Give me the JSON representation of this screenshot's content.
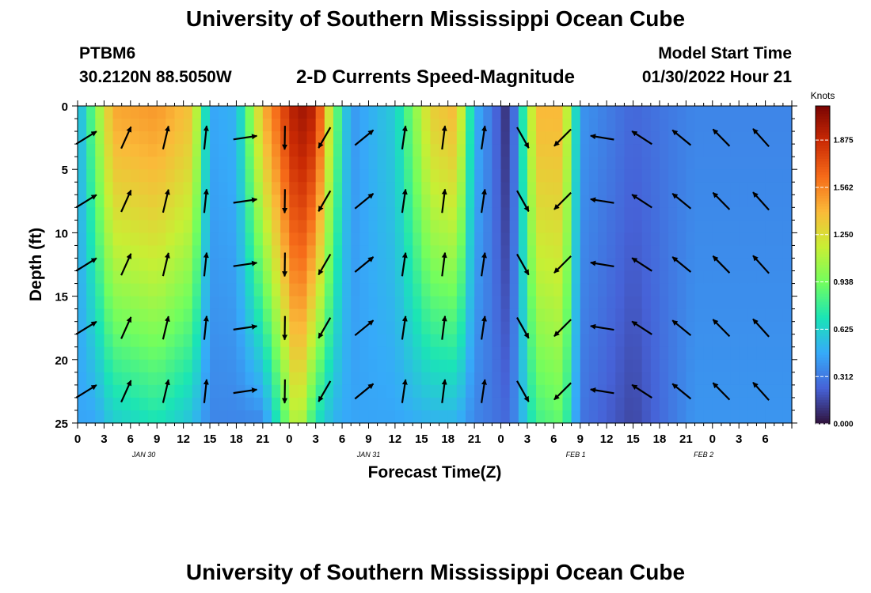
{
  "header": {
    "title": "University of Southern Mississippi Ocean Cube",
    "station": "PTBM6",
    "coordinates": "30.2120N  88.5050W",
    "subtitle": "2-D Currents Speed-Magnitude",
    "model_start_label": "Model Start Time",
    "model_start_time": "01/30/2022 Hour 21"
  },
  "footer": {
    "title": "University of Southern Mississippi Ocean Cube"
  },
  "colors": {
    "ramp": [
      "#30123b",
      "#4662d7",
      "#36aaf9",
      "#1ae4b6",
      "#72fe5e",
      "#c8ef34",
      "#faba39",
      "#f66b19",
      "#ca2a04",
      "#7a0403"
    ],
    "arrow": "#000000",
    "axis": "#000000"
  },
  "chart_data": {
    "type": "heatmap",
    "title": "2-D Currents Speed-Magnitude",
    "xlabel": "Forecast Time(Z)",
    "ylabel": "Depth (ft)",
    "x_range_hours": [
      0,
      81
    ],
    "y_range_ft": [
      0,
      25
    ],
    "y_ticks": [
      0,
      5,
      10,
      15,
      20,
      25
    ],
    "x_tick_labels": [
      "0",
      "3",
      "6",
      "9",
      "12",
      "15",
      "18",
      "21",
      "0",
      "3",
      "6",
      "9",
      "12",
      "15",
      "18",
      "21",
      "0",
      "3",
      "6",
      "9",
      "12",
      "15",
      "18",
      "21",
      "0",
      "3",
      "6"
    ],
    "date_labels": [
      {
        "text": "JAN 30",
        "hour": 7.5
      },
      {
        "text": "JAN 31",
        "hour": 33
      },
      {
        "text": "FEB 1",
        "hour": 56.5
      },
      {
        "text": "FEB 2",
        "hour": 71
      }
    ],
    "colorbar": {
      "label": "Knots",
      "min": 0,
      "max": 2.1,
      "ticks": [
        "0.000",
        "0.312",
        "0.625",
        "0.938",
        "1.250",
        "1.562",
        "1.875"
      ]
    },
    "speed_knots_by_hour": [
      {
        "hour": 0,
        "surface": 0.45,
        "bottom": 0.45
      },
      {
        "hour": 2,
        "surface": 0.95,
        "bottom": 0.45
      },
      {
        "hour": 4,
        "surface": 1.45,
        "bottom": 0.6
      },
      {
        "hour": 9,
        "surface": 1.5,
        "bottom": 0.7
      },
      {
        "hour": 13,
        "surface": 1.35,
        "bottom": 0.55
      },
      {
        "hour": 15,
        "surface": 0.45,
        "bottom": 0.35
      },
      {
        "hour": 18,
        "surface": 0.5,
        "bottom": 0.35
      },
      {
        "hour": 21,
        "surface": 1.4,
        "bottom": 0.35
      },
      {
        "hour": 25,
        "surface": 2.0,
        "bottom": 1.2
      },
      {
        "hour": 27,
        "surface": 1.9,
        "bottom": 0.7
      },
      {
        "hour": 29,
        "surface": 1.0,
        "bottom": 0.5
      },
      {
        "hour": 31,
        "surface": 0.4,
        "bottom": 0.45
      },
      {
        "hour": 36,
        "surface": 0.6,
        "bottom": 0.45
      },
      {
        "hour": 40,
        "surface": 1.3,
        "bottom": 0.5
      },
      {
        "hour": 43,
        "surface": 1.4,
        "bottom": 0.5
      },
      {
        "hour": 45,
        "surface": 0.5,
        "bottom": 0.35
      },
      {
        "hour": 47,
        "surface": 0.3,
        "bottom": 0.3
      },
      {
        "hour": 49,
        "surface": 0.05,
        "bottom": 0.25
      },
      {
        "hour": 52,
        "surface": 1.4,
        "bottom": 0.8
      },
      {
        "hour": 55,
        "surface": 1.4,
        "bottom": 0.9
      },
      {
        "hour": 57,
        "surface": 0.4,
        "bottom": 0.3
      },
      {
        "hour": 63,
        "surface": 0.25,
        "bottom": 0.15
      },
      {
        "hour": 70,
        "surface": 0.35,
        "bottom": 0.4
      },
      {
        "hour": 81,
        "surface": 0.35,
        "bottom": 0.4
      }
    ],
    "direction_deg_by_hour": [
      {
        "hour": 0,
        "deg": 65
      },
      {
        "hour": 3,
        "deg": 45
      },
      {
        "hour": 6,
        "deg": 20
      },
      {
        "hour": 12,
        "deg": 10
      },
      {
        "hour": 15,
        "deg": 5
      },
      {
        "hour": 18,
        "deg": 30
      },
      {
        "hour": 21,
        "deg": 185
      },
      {
        "hour": 24,
        "deg": 180
      },
      {
        "hour": 27,
        "deg": 200
      },
      {
        "hour": 30,
        "deg": 230
      },
      {
        "hour": 33,
        "deg": 15
      },
      {
        "hour": 39,
        "deg": 5
      },
      {
        "hour": 45,
        "deg": 10
      },
      {
        "hour": 48,
        "deg": 5
      },
      {
        "hour": 51,
        "deg": 180
      },
      {
        "hour": 54,
        "deg": 215
      },
      {
        "hour": 57,
        "deg": 245
      },
      {
        "hour": 61,
        "deg": 300
      },
      {
        "hour": 66,
        "deg": 305
      },
      {
        "hour": 72,
        "deg": 315
      },
      {
        "hour": 81,
        "deg": 320
      }
    ]
  }
}
